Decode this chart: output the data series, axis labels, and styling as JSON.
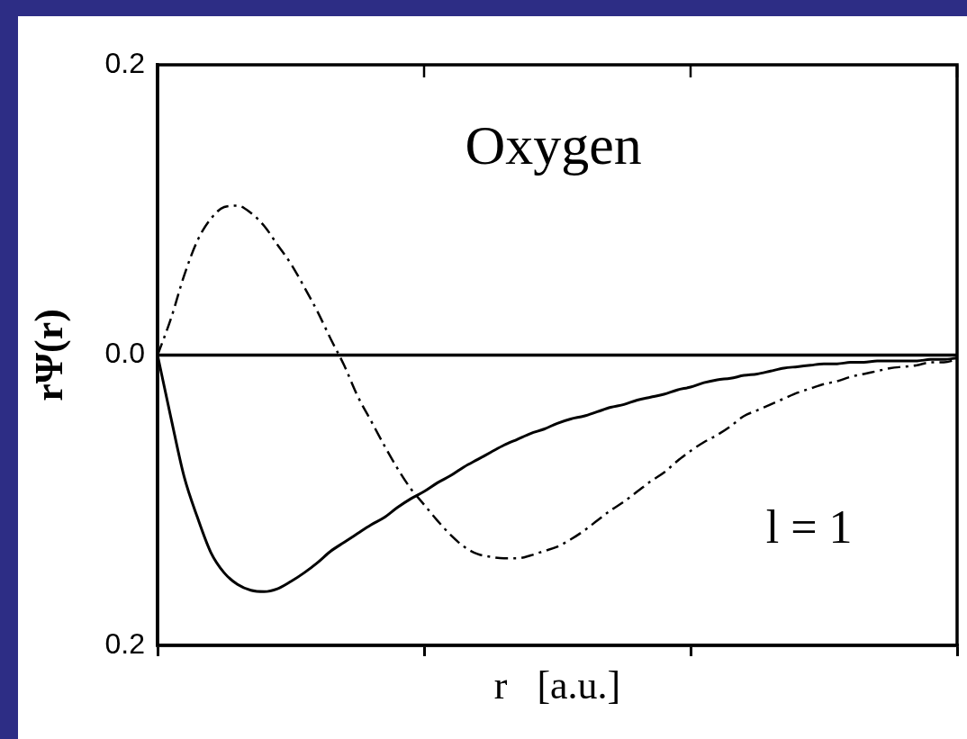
{
  "chart_data": {
    "type": "line",
    "xlabel": "r   [a.u.]",
    "ylabel": "rΨ(r)",
    "annotations": [
      "Oxygen",
      "l = 1"
    ],
    "categories": [
      null,
      null,
      null,
      null,
      null,
      null,
      null,
      null,
      null,
      null,
      null,
      null,
      null,
      null,
      null,
      null,
      null,
      null,
      null,
      null,
      null,
      null,
      null,
      null,
      null,
      null,
      null,
      null,
      null,
      null,
      null,
      null,
      null,
      null,
      null,
      null,
      null,
      null,
      null,
      null,
      null,
      null,
      null,
      null,
      null,
      null,
      null,
      null,
      null,
      null,
      null,
      null,
      null,
      null,
      null,
      null,
      null,
      null,
      null,
      null,
      null
    ],
    "series": [
      {
        "color": "#000000",
        "line_style": "solid",
        "values": [
          0,
          -0.043,
          -0.084,
          -0.112,
          -0.136,
          -0.15,
          -0.158,
          -0.162,
          -0.163,
          -0.161,
          -0.156,
          -0.15,
          -0.143,
          -0.135,
          -0.129,
          -0.123,
          -0.117,
          -0.112,
          -0.105,
          -0.099,
          -0.094,
          -0.088,
          -0.083,
          -0.077,
          -0.072,
          -0.067,
          -0.062,
          -0.058,
          -0.054,
          -0.051,
          -0.047,
          -0.044,
          -0.042,
          -0.039,
          -0.036,
          -0.034,
          -0.031,
          -0.029,
          -0.027,
          -0.024,
          -0.022,
          -0.019,
          -0.017,
          -0.016,
          -0.014,
          -0.013,
          -0.011,
          -0.009,
          -0.008,
          -0.007,
          -0.006,
          -0.006,
          -0.005,
          -0.005,
          -0.004,
          -0.004,
          -0.004,
          -0.004,
          -0.003,
          -0.003,
          -0.002
        ]
      },
      {
        "color": "#000000",
        "line_style": "dashed",
        "values": [
          0,
          0.025,
          0.055,
          0.079,
          0.094,
          0.102,
          0.103,
          0.098,
          0.089,
          0.076,
          0.063,
          0.047,
          0.03,
          0.011,
          -0.007,
          -0.028,
          -0.045,
          -0.062,
          -0.078,
          -0.092,
          -0.103,
          -0.114,
          -0.124,
          -0.132,
          -0.137,
          -0.139,
          -0.14,
          -0.14,
          -0.138,
          -0.135,
          -0.132,
          -0.127,
          -0.121,
          -0.114,
          -0.107,
          -0.101,
          -0.094,
          -0.087,
          -0.081,
          -0.073,
          -0.066,
          -0.06,
          -0.055,
          -0.049,
          -0.042,
          -0.038,
          -0.034,
          -0.03,
          -0.026,
          -0.023,
          -0.02,
          -0.018,
          -0.015,
          -0.013,
          -0.011,
          -0.009,
          -0.008,
          -0.007,
          -0.005,
          -0.005,
          -0.003
        ]
      }
    ],
    "ylim": [
      -0.2,
      0.2
    ],
    "yticks": [
      {
        "value": -0.2,
        "label": "0.2"
      },
      {
        "value": 0,
        "label": "0.0"
      },
      0.2
    ],
    "ref_lines": [
      {
        "axis": "y",
        "value": 0,
        "color": "#000000"
      }
    ],
    "marker": "none",
    "grid": false,
    "legend": false
  }
}
